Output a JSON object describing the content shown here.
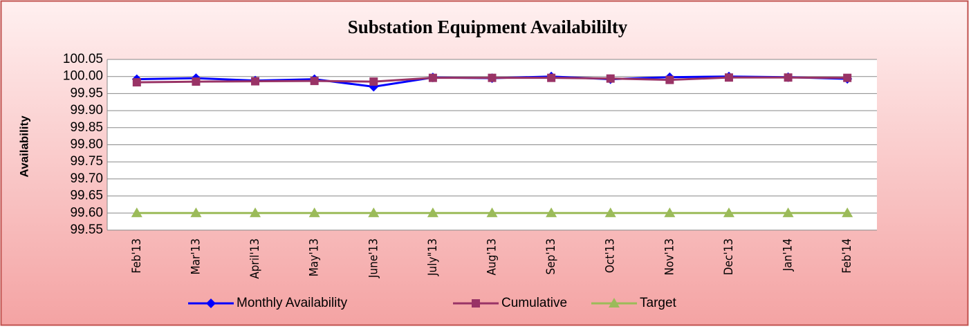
{
  "chart_data": {
    "type": "line",
    "title": "Substation Equipment Availabililty",
    "y_label": "Availability",
    "categories": [
      "Feb'13",
      "Mar'13",
      "April'13",
      "May'13",
      "June'13",
      "July\"13",
      "Aug'13",
      "Sep'13",
      "Oct'13",
      "Nov'13",
      "Dec'13",
      "Jan'14",
      "Feb'14"
    ],
    "series": [
      {
        "name": "Monthly Availability",
        "color": "#0000ff",
        "marker": "diamond",
        "values": [
          99.992,
          99.995,
          99.988,
          99.992,
          99.97,
          99.997,
          99.995,
          100.0,
          99.992,
          99.998,
          100.0,
          99.998,
          99.993
        ]
      },
      {
        "name": "Cumulative",
        "color": "#993366",
        "marker": "square",
        "values": [
          99.983,
          99.985,
          99.986,
          99.987,
          99.985,
          99.996,
          99.996,
          99.996,
          99.994,
          99.99,
          99.997,
          99.997,
          99.996
        ]
      },
      {
        "name": "Target",
        "color": "#9bbb59",
        "marker": "triangle",
        "values": [
          99.6,
          99.6,
          99.6,
          99.6,
          99.6,
          99.6,
          99.6,
          99.6,
          99.6,
          99.6,
          99.6,
          99.6,
          99.6
        ]
      }
    ],
    "ylim": [
      99.55,
      100.05
    ],
    "yticks": [
      99.55,
      {
        "value": 99.6,
        "label": "99.60"
      },
      99.65,
      {
        "value": 99.7,
        "label": "99.70"
      },
      99.75,
      {
        "value": 99.8,
        "label": "99.80"
      },
      99.85,
      {
        "value": 99.9,
        "label": "99.90"
      },
      99.95,
      {
        "value": 100,
        "label": "100.00"
      },
      100.05
    ],
    "grid": true,
    "legend": "bottom"
  }
}
